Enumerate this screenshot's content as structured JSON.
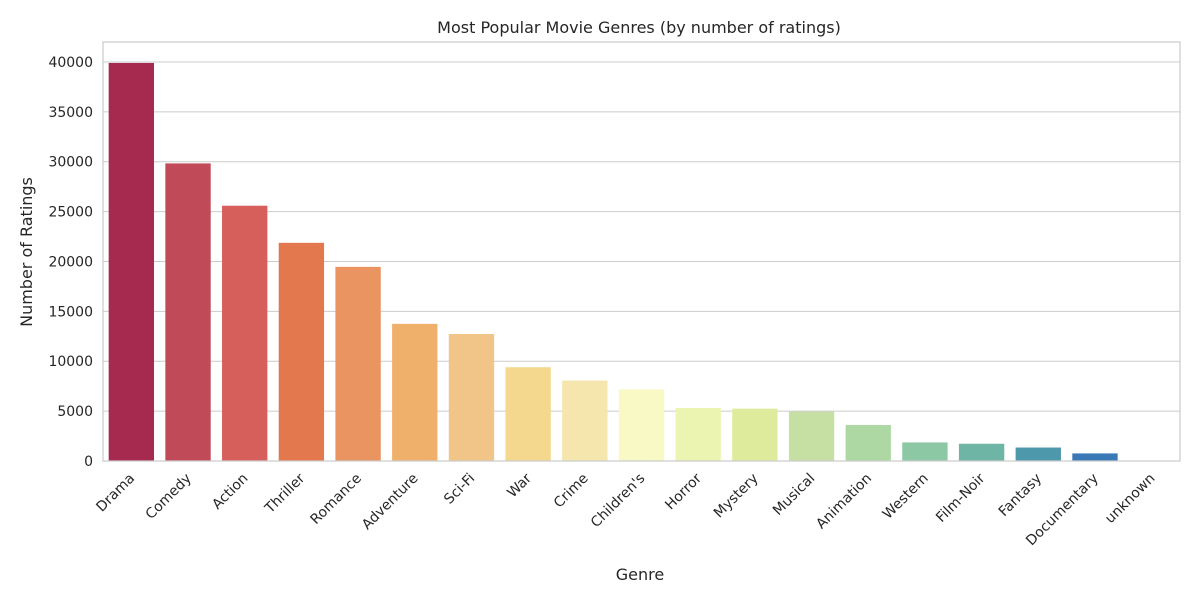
{
  "chart_data": {
    "type": "bar",
    "title": "Most Popular Movie Genres (by number of ratings)",
    "xlabel": "Genre",
    "ylabel": "Number of Ratings",
    "ylim": [
      0,
      42000
    ],
    "yticks": [
      0,
      5000,
      10000,
      15000,
      20000,
      25000,
      30000,
      35000,
      40000
    ],
    "grid": true,
    "categories": [
      "Drama",
      "Comedy",
      "Action",
      "Thriller",
      "Romance",
      "Adventure",
      "Sci-Fi",
      "War",
      "Crime",
      "Children's",
      "Horror",
      "Mystery",
      "Musical",
      "Animation",
      "Western",
      "Film-Noir",
      "Fantasy",
      "Documentary",
      "unknown"
    ],
    "values": [
      39900,
      29830,
      25590,
      21870,
      19460,
      13750,
      12730,
      9400,
      8060,
      7180,
      5320,
      5250,
      4950,
      3610,
      1860,
      1730,
      1350,
      760,
      10
    ],
    "colors": [
      "#a6294f",
      "#c14a58",
      "#d65f5b",
      "#e3774e",
      "#ea9461",
      "#efb06b",
      "#f1c587",
      "#f3d88e",
      "#f4e6ad",
      "#f8f9c4",
      "#ecf4b2",
      "#dfeb9c",
      "#c5e0a2",
      "#add8a4",
      "#8cc8a3",
      "#6fb5a6",
      "#4e98ab",
      "#3a79b5",
      "#4a61a6"
    ]
  }
}
